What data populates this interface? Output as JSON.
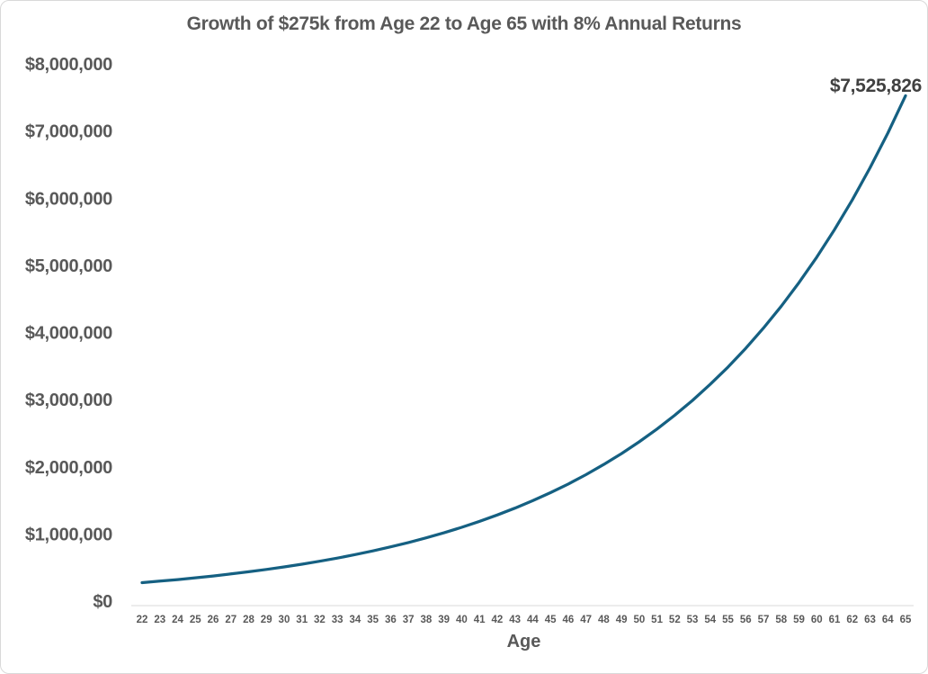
{
  "chart_data": {
    "type": "line",
    "title": "Growth of $275k from Age 22 to Age 65 with 8% Annual Returns",
    "xlabel": "Age",
    "ylabel": "",
    "x": [
      22,
      23,
      24,
      25,
      26,
      27,
      28,
      29,
      30,
      31,
      32,
      33,
      34,
      35,
      36,
      37,
      38,
      39,
      40,
      41,
      42,
      43,
      44,
      45,
      46,
      47,
      48,
      49,
      50,
      51,
      52,
      53,
      54,
      55,
      56,
      57,
      58,
      59,
      60,
      61,
      62,
      63,
      64,
      65
    ],
    "values": [
      275000,
      297000,
      320760,
      346421,
      374134,
      404065,
      436390,
      471302,
      509006,
      549726,
      593704,
      641201,
      692497,
      747897,
      807728,
      872347,
      942134,
      1017505,
      1098905,
      1186818,
      1281763,
      1384304,
      1495049,
      1614652,
      1743825,
      1883331,
      2033997,
      2196717,
      2372454,
      2562251,
      2767231,
      2988609,
      3227698,
      3485914,
      3764787,
      4065970,
      4391247,
      4742547,
      5121951,
      5531707,
      5974243,
      6452183,
      6968357,
      7525826
    ],
    "end_label": "$7,525,826",
    "ylim": [
      0,
      8000000
    ],
    "y_tick_values": [
      0,
      1000000,
      2000000,
      3000000,
      4000000,
      5000000,
      6000000,
      7000000,
      8000000
    ],
    "y_tick_labels": [
      "$0",
      "$1,000,000",
      "$2,000,000",
      "$3,000,000",
      "$4,000,000",
      "$5,000,000",
      "$6,000,000",
      "$7,000,000",
      "$8,000,000"
    ],
    "grid": false,
    "legend_position": "none"
  },
  "colors": {
    "line": "#156082",
    "title_text": "#595959",
    "axis_text": "#595959",
    "data_label_text": "#404040",
    "axis_line": "#D9D9D9",
    "chart_border": "#D9D9D9",
    "background": "#FFFFFF"
  }
}
